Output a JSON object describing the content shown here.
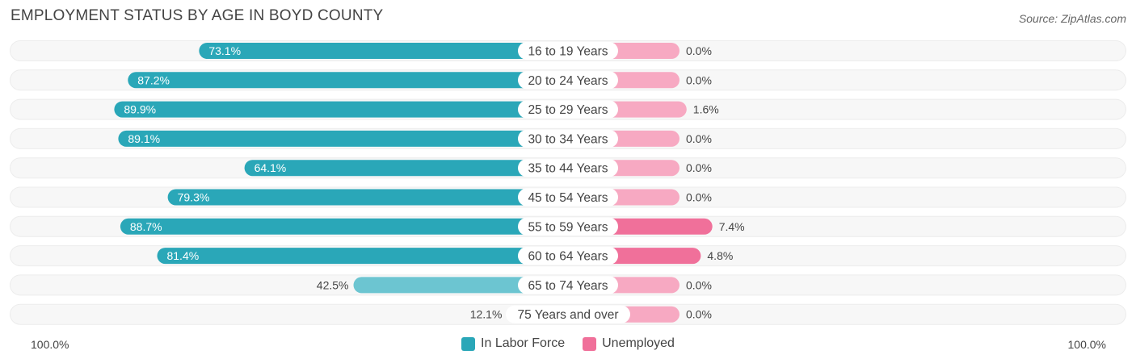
{
  "title": "EMPLOYMENT STATUS BY AGE IN BOYD COUNTY",
  "source": "Source: ZipAtlas.com",
  "colors": {
    "labor_dark": "#2aa7b8",
    "labor_light": "#6cc5d1",
    "unemp_dark": "#f0709a",
    "unemp_light": "#f7a9c2",
    "row_bg": "#efefef"
  },
  "chart_data": {
    "type": "bar",
    "categories": [
      "16 to 19 Years",
      "20 to 24 Years",
      "25 to 29 Years",
      "30 to 34 Years",
      "35 to 44 Years",
      "45 to 54 Years",
      "55 to 59 Years",
      "60 to 64 Years",
      "65 to 74 Years",
      "75 Years and over"
    ],
    "series": [
      {
        "name": "In Labor Force",
        "values": [
          73.1,
          87.2,
          89.9,
          89.1,
          64.1,
          79.3,
          88.7,
          81.4,
          42.5,
          12.1
        ],
        "labels": [
          "73.1%",
          "87.2%",
          "89.9%",
          "89.1%",
          "64.1%",
          "79.3%",
          "88.7%",
          "81.4%",
          "42.5%",
          "12.1%"
        ]
      },
      {
        "name": "Unemployed",
        "values": [
          0.0,
          0.0,
          1.6,
          0.0,
          0.0,
          0.0,
          7.4,
          4.8,
          0.0,
          0.0
        ],
        "labels": [
          "0.0%",
          "0.0%",
          "1.6%",
          "0.0%",
          "0.0%",
          "0.0%",
          "7.4%",
          "4.8%",
          "0.0%",
          "0.0%"
        ]
      }
    ],
    "axis_left_label": "100.0%",
    "axis_right_label": "100.0%",
    "xlim": [
      -100,
      100
    ],
    "legend_position": "bottom-center"
  }
}
